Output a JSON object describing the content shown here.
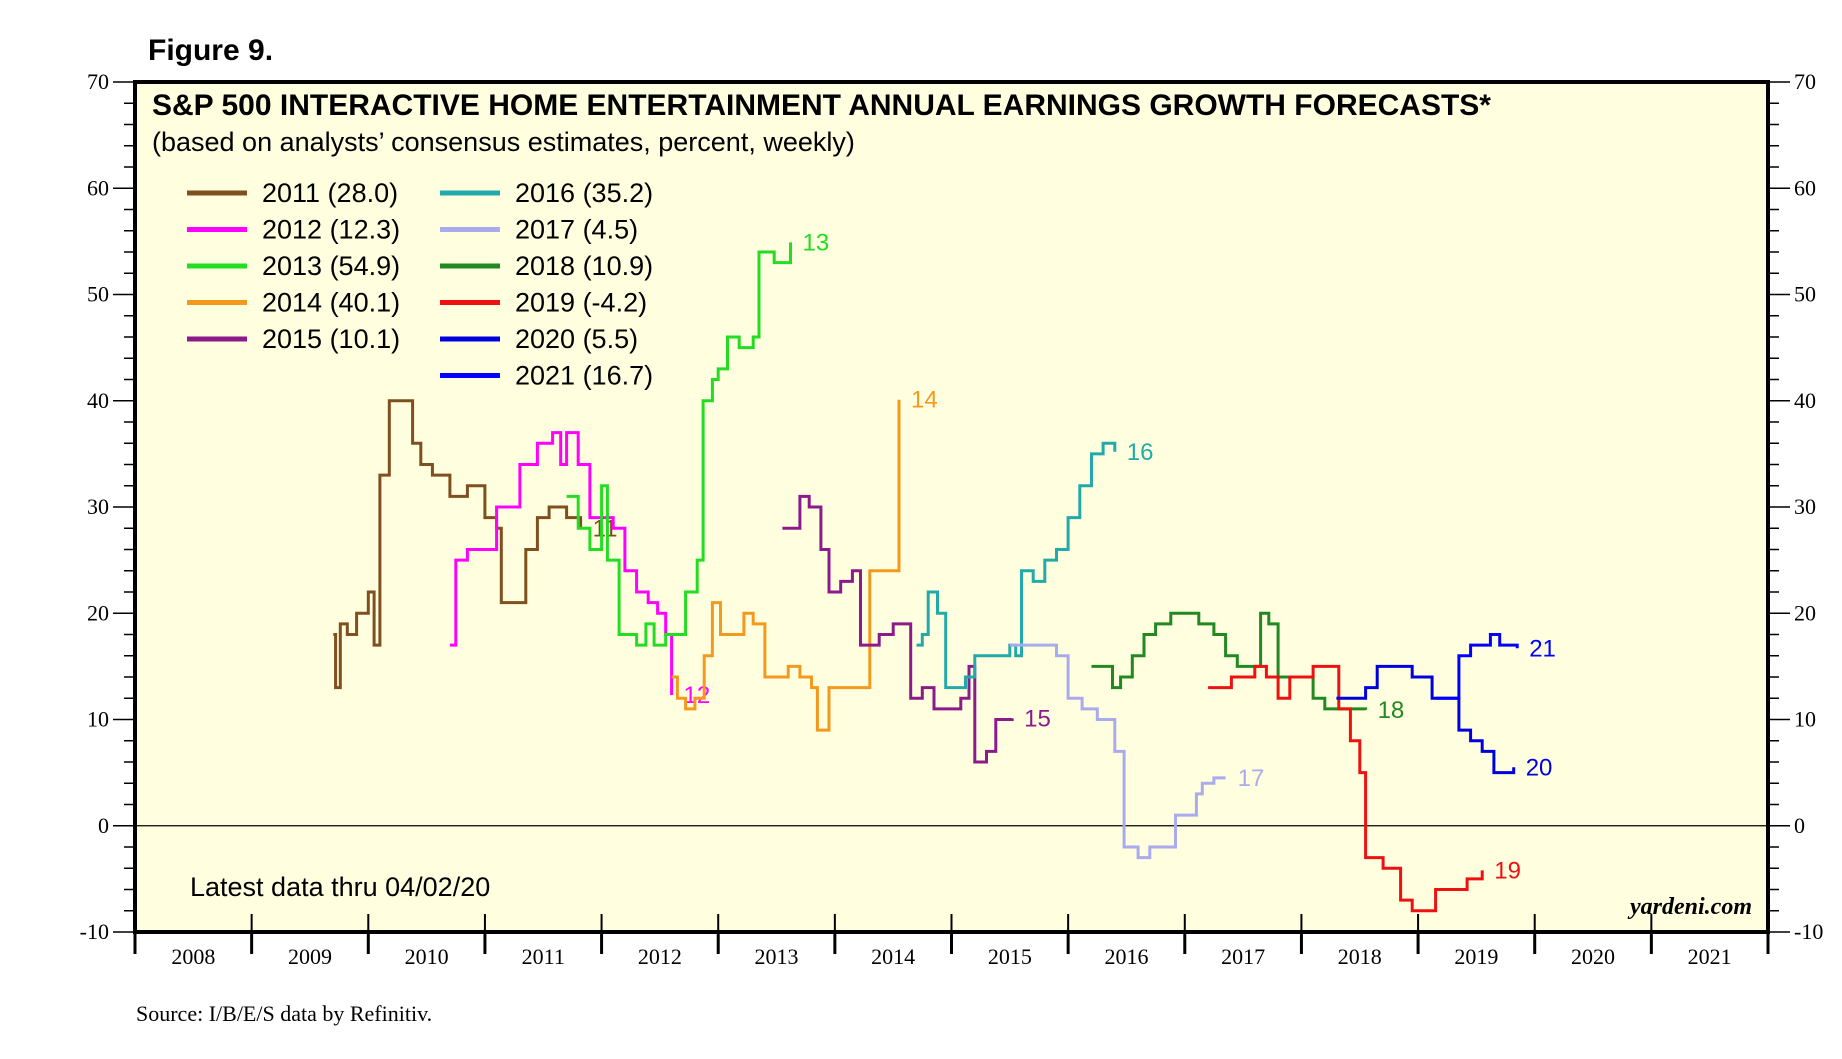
{
  "figure_label": "Figure 9.",
  "source": "Source: I/B/E/S data by Refinitiv.",
  "watermark": "yardeni.com",
  "latest_note": "Latest data thru 04/02/20",
  "colors": {
    "plot_background": "#ffffe0",
    "zero_line": "#000000"
  },
  "chart_data": {
    "type": "line",
    "title": "S&P 500 INTERACTIVE HOME ENTERTAINMENT ANNUAL EARNINGS GROWTH FORECASTS*",
    "subtitle": "(based on analysts’ consensus estimates, percent, weekly)",
    "xlabel": "",
    "ylabel": "",
    "x_range": [
      2008,
      2022
    ],
    "x_tick_labels": [
      "2008",
      "2009",
      "2010",
      "2011",
      "2012",
      "2013",
      "2014",
      "2015",
      "2016",
      "2017",
      "2018",
      "2019",
      "2020",
      "2021"
    ],
    "ylim": [
      -10,
      70
    ],
    "y_ticks": [
      -10,
      0,
      10,
      20,
      30,
      40,
      50,
      60,
      70
    ],
    "grid": false,
    "legend_position": "top-left",
    "series": [
      {
        "name": "2011 (28.0)",
        "end_label": "11",
        "color": "#7f4f1f",
        "points": [
          [
            2009.7,
            18
          ],
          [
            2009.72,
            13
          ],
          [
            2009.76,
            19
          ],
          [
            2009.82,
            18
          ],
          [
            2009.9,
            20
          ],
          [
            2009.97,
            20
          ],
          [
            2010.0,
            22
          ],
          [
            2010.05,
            17
          ],
          [
            2010.1,
            33
          ],
          [
            2010.18,
            40
          ],
          [
            2010.3,
            40
          ],
          [
            2010.38,
            36
          ],
          [
            2010.45,
            34
          ],
          [
            2010.55,
            33
          ],
          [
            2010.7,
            31
          ],
          [
            2010.85,
            32
          ],
          [
            2010.95,
            32
          ],
          [
            2011.0,
            29
          ],
          [
            2011.1,
            28
          ],
          [
            2011.14,
            21
          ],
          [
            2011.25,
            21
          ],
          [
            2011.35,
            26
          ],
          [
            2011.45,
            29
          ],
          [
            2011.55,
            30
          ],
          [
            2011.7,
            29
          ],
          [
            2011.82,
            28.0
          ]
        ]
      },
      {
        "name": "2012 (12.3)",
        "end_label": "12",
        "color": "#ff00ff",
        "points": [
          [
            2010.7,
            17
          ],
          [
            2010.75,
            25
          ],
          [
            2010.85,
            26
          ],
          [
            2010.95,
            26
          ],
          [
            2011.05,
            26
          ],
          [
            2011.1,
            30
          ],
          [
            2011.2,
            30
          ],
          [
            2011.3,
            34
          ],
          [
            2011.45,
            36
          ],
          [
            2011.58,
            37
          ],
          [
            2011.65,
            34
          ],
          [
            2011.7,
            37
          ],
          [
            2011.8,
            34
          ],
          [
            2011.9,
            29
          ],
          [
            2012.0,
            29
          ],
          [
            2012.1,
            28
          ],
          [
            2012.2,
            24
          ],
          [
            2012.3,
            22
          ],
          [
            2012.4,
            21
          ],
          [
            2012.48,
            20
          ],
          [
            2012.55,
            18
          ],
          [
            2012.6,
            12.3
          ]
        ]
      },
      {
        "name": "2013 (54.9)",
        "end_label": "13",
        "color": "#22dd22",
        "points": [
          [
            2011.7,
            31
          ],
          [
            2011.8,
            28
          ],
          [
            2011.9,
            26
          ],
          [
            2012.0,
            32
          ],
          [
            2012.05,
            25
          ],
          [
            2012.15,
            18
          ],
          [
            2012.3,
            17
          ],
          [
            2012.38,
            19
          ],
          [
            2012.45,
            17
          ],
          [
            2012.55,
            18
          ],
          [
            2012.62,
            18
          ],
          [
            2012.72,
            22
          ],
          [
            2012.82,
            25
          ],
          [
            2012.87,
            40
          ],
          [
            2012.95,
            42
          ],
          [
            2013.0,
            43
          ],
          [
            2013.08,
            46
          ],
          [
            2013.18,
            45
          ],
          [
            2013.3,
            46
          ],
          [
            2013.35,
            54
          ],
          [
            2013.48,
            53
          ],
          [
            2013.58,
            53
          ],
          [
            2013.62,
            54.9
          ]
        ]
      },
      {
        "name": "2014 (40.1)",
        "end_label": "14",
        "color": "#f39a1e",
        "points": [
          [
            2012.6,
            14
          ],
          [
            2012.65,
            12
          ],
          [
            2012.72,
            11
          ],
          [
            2012.8,
            12
          ],
          [
            2012.88,
            16
          ],
          [
            2012.95,
            21
          ],
          [
            2013.02,
            18
          ],
          [
            2013.12,
            18
          ],
          [
            2013.22,
            20
          ],
          [
            2013.3,
            19
          ],
          [
            2013.4,
            14
          ],
          [
            2013.5,
            14
          ],
          [
            2013.6,
            15
          ],
          [
            2013.7,
            14
          ],
          [
            2013.8,
            13
          ],
          [
            2013.85,
            9
          ],
          [
            2013.95,
            13
          ],
          [
            2014.1,
            13
          ],
          [
            2014.2,
            13
          ],
          [
            2014.3,
            24
          ],
          [
            2014.45,
            24
          ],
          [
            2014.55,
            40.1
          ]
        ]
      },
      {
        "name": "2015 (10.1)",
        "end_label": "15",
        "color": "#8b1a8b",
        "points": [
          [
            2013.55,
            28
          ],
          [
            2013.65,
            28
          ],
          [
            2013.7,
            31
          ],
          [
            2013.78,
            30
          ],
          [
            2013.88,
            26
          ],
          [
            2013.95,
            22
          ],
          [
            2014.05,
            23
          ],
          [
            2014.15,
            24
          ],
          [
            2014.22,
            17
          ],
          [
            2014.3,
            17
          ],
          [
            2014.38,
            18
          ],
          [
            2014.5,
            19
          ],
          [
            2014.58,
            19
          ],
          [
            2014.65,
            12
          ],
          [
            2014.75,
            13
          ],
          [
            2014.85,
            11
          ],
          [
            2015.0,
            11
          ],
          [
            2015.08,
            12
          ],
          [
            2015.15,
            15
          ],
          [
            2015.2,
            6
          ],
          [
            2015.3,
            7
          ],
          [
            2015.38,
            10
          ],
          [
            2015.45,
            10
          ],
          [
            2015.52,
            10.1
          ]
        ]
      },
      {
        "name": "2016 (35.2)",
        "end_label": "16",
        "color": "#22aaaa",
        "points": [
          [
            2014.7,
            17
          ],
          [
            2014.75,
            18
          ],
          [
            2014.8,
            22
          ],
          [
            2014.88,
            20
          ],
          [
            2014.95,
            13
          ],
          [
            2015.05,
            13
          ],
          [
            2015.12,
            14
          ],
          [
            2015.2,
            16
          ],
          [
            2015.3,
            16
          ],
          [
            2015.4,
            16
          ],
          [
            2015.5,
            17
          ],
          [
            2015.55,
            16
          ],
          [
            2015.6,
            24
          ],
          [
            2015.7,
            23
          ],
          [
            2015.8,
            25
          ],
          [
            2015.9,
            26
          ],
          [
            2016.0,
            29
          ],
          [
            2016.1,
            32
          ],
          [
            2016.2,
            35
          ],
          [
            2016.3,
            36
          ],
          [
            2016.4,
            35.2
          ]
        ]
      },
      {
        "name": "2017 (4.5)",
        "end_label": "17",
        "color": "#aaaaee",
        "points": [
          [
            2015.5,
            17
          ],
          [
            2015.6,
            17
          ],
          [
            2015.7,
            17
          ],
          [
            2015.82,
            17
          ],
          [
            2015.9,
            16
          ],
          [
            2016.0,
            12
          ],
          [
            2016.12,
            11
          ],
          [
            2016.25,
            10
          ],
          [
            2016.4,
            7
          ],
          [
            2016.48,
            -2
          ],
          [
            2016.6,
            -3
          ],
          [
            2016.7,
            -2
          ],
          [
            2016.85,
            -2
          ],
          [
            2016.92,
            1
          ],
          [
            2017.0,
            1
          ],
          [
            2017.1,
            3
          ],
          [
            2017.15,
            4
          ],
          [
            2017.25,
            4.5
          ],
          [
            2017.35,
            4.5
          ]
        ]
      },
      {
        "name": "2018 (10.9)",
        "end_label": "18",
        "color": "#228822",
        "points": [
          [
            2016.2,
            15
          ],
          [
            2016.3,
            15
          ],
          [
            2016.38,
            13
          ],
          [
            2016.45,
            14
          ],
          [
            2016.55,
            16
          ],
          [
            2016.65,
            18
          ],
          [
            2016.75,
            19
          ],
          [
            2016.88,
            20
          ],
          [
            2017.0,
            20
          ],
          [
            2017.12,
            19
          ],
          [
            2017.25,
            18
          ],
          [
            2017.35,
            16
          ],
          [
            2017.45,
            15
          ],
          [
            2017.55,
            15
          ],
          [
            2017.65,
            20
          ],
          [
            2017.72,
            19
          ],
          [
            2017.8,
            14
          ],
          [
            2017.9,
            14
          ],
          [
            2018.0,
            14
          ],
          [
            2018.1,
            12
          ],
          [
            2018.2,
            11
          ],
          [
            2018.3,
            11
          ],
          [
            2018.4,
            11
          ],
          [
            2018.55,
            10.9
          ]
        ]
      },
      {
        "name": "2019 (-4.2)",
        "end_label": "19",
        "color": "#ee1111",
        "points": [
          [
            2017.2,
            13
          ],
          [
            2017.3,
            13
          ],
          [
            2017.4,
            14
          ],
          [
            2017.5,
            14
          ],
          [
            2017.6,
            15
          ],
          [
            2017.7,
            14
          ],
          [
            2017.8,
            12
          ],
          [
            2017.9,
            14
          ],
          [
            2018.0,
            14
          ],
          [
            2018.1,
            15
          ],
          [
            2018.2,
            15
          ],
          [
            2018.32,
            11
          ],
          [
            2018.42,
            8
          ],
          [
            2018.5,
            5
          ],
          [
            2018.55,
            -3
          ],
          [
            2018.7,
            -4
          ],
          [
            2018.8,
            -4
          ],
          [
            2018.85,
            -7
          ],
          [
            2018.95,
            -8
          ],
          [
            2019.05,
            -8
          ],
          [
            2019.15,
            -6
          ],
          [
            2019.3,
            -6
          ],
          [
            2019.42,
            -5
          ],
          [
            2019.5,
            -5
          ],
          [
            2019.55,
            -4.2
          ]
        ]
      },
      {
        "name": "2020 (5.5)",
        "end_label": "20",
        "color": "#0000dd",
        "points": [
          [
            2018.3,
            12
          ],
          [
            2018.38,
            12
          ],
          [
            2018.45,
            12
          ],
          [
            2018.55,
            13
          ],
          [
            2018.65,
            15
          ],
          [
            2018.75,
            15
          ],
          [
            2018.85,
            15
          ],
          [
            2018.95,
            14
          ],
          [
            2019.05,
            14
          ],
          [
            2019.12,
            12
          ],
          [
            2019.2,
            12
          ],
          [
            2019.28,
            12
          ],
          [
            2019.35,
            9
          ],
          [
            2019.45,
            8
          ],
          [
            2019.55,
            7
          ],
          [
            2019.65,
            5
          ],
          [
            2019.75,
            5
          ],
          [
            2019.82,
            5.5
          ]
        ]
      },
      {
        "name": "2021 (16.7)",
        "end_label": "21",
        "color": "#0000ff",
        "points": [
          [
            2019.15,
            12
          ],
          [
            2019.25,
            12
          ],
          [
            2019.35,
            16
          ],
          [
            2019.45,
            17
          ],
          [
            2019.55,
            17
          ],
          [
            2019.62,
            18
          ],
          [
            2019.7,
            17
          ],
          [
            2019.8,
            17
          ],
          [
            2019.85,
            16.7
          ]
        ]
      }
    ]
  }
}
